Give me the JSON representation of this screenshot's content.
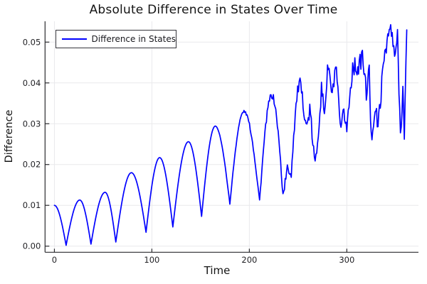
{
  "figure": {
    "title": "Absolute Difference in States Over Time",
    "x_label": "Time",
    "y_label": "Difference"
  },
  "legend": {
    "label": "Difference in States"
  },
  "colors": {
    "series": "#0000ff",
    "grid": "#e9e9ec",
    "axis": "#2a2a2e",
    "text": "#1f1f23",
    "background": "#ffffff"
  },
  "chart_data": {
    "type": "line",
    "title": "Absolute Difference in States Over Time",
    "xlabel": "Time",
    "ylabel": "Difference",
    "xlim": [
      -9.6,
      373.5
    ],
    "ylim": [
      -0.0015,
      0.0551
    ],
    "grid": true,
    "legend_position": "top-left",
    "x_ticks": {
      "values": [
        0,
        100,
        200,
        300
      ],
      "labels": [
        "0",
        "100",
        "200",
        "300"
      ]
    },
    "y_ticks": {
      "values": [
        0.0,
        0.01,
        0.02,
        0.03,
        0.04,
        0.05
      ],
      "labels": [
        "0.00",
        "0.01",
        "0.02",
        "0.03",
        "0.04",
        "0.05"
      ]
    },
    "series": [
      {
        "name": "Difference in States",
        "color": "#0000ff",
        "points_note": "key data points (local extrema) read from the plot; curve oscillates between them",
        "points": [
          [
            0,
            0.01
          ],
          [
            12,
            0.0002
          ],
          [
            26,
            0.0113
          ],
          [
            37.5,
            0.0005
          ],
          [
            52,
            0.0132
          ],
          [
            63,
            0.001
          ],
          [
            79,
            0.018
          ],
          [
            94,
            0.0034
          ],
          [
            108,
            0.0217
          ],
          [
            121.5,
            0.0047
          ],
          [
            137.5,
            0.0256
          ],
          [
            151,
            0.0073
          ],
          [
            165,
            0.0294
          ],
          [
            180,
            0.0103
          ],
          [
            194.5,
            0.033
          ],
          [
            210.5,
            0.0111
          ],
          [
            223,
            0.0369
          ],
          [
            234.5,
            0.0125
          ],
          [
            239,
            0.019
          ],
          [
            243,
            0.0178
          ],
          [
            252,
            0.0398
          ],
          [
            259,
            0.029
          ],
          [
            262,
            0.0335
          ],
          [
            267.5,
            0.0193
          ],
          [
            274,
            0.0382
          ],
          [
            277,
            0.033
          ],
          [
            281,
            0.0447
          ],
          [
            285,
            0.0362
          ],
          [
            288.5,
            0.0442
          ],
          [
            294,
            0.0272
          ],
          [
            297,
            0.0332
          ],
          [
            300,
            0.0288
          ],
          [
            306,
            0.0443
          ],
          [
            312,
            0.0435
          ],
          [
            316,
            0.0468
          ],
          [
            320,
            0.0375
          ],
          [
            323,
            0.043
          ],
          [
            325,
            0.0261
          ],
          [
            329,
            0.0342
          ],
          [
            332,
            0.0292
          ],
          [
            339,
            0.0481
          ],
          [
            345,
            0.0537
          ],
          [
            349,
            0.0462
          ],
          [
            352,
            0.0512
          ],
          [
            355,
            0.0272
          ],
          [
            357.5,
            0.0392
          ],
          [
            359,
            0.0255
          ],
          [
            361.5,
            0.053
          ]
        ],
        "noise": {
          "start_t": 150,
          "ramp_t": 120,
          "max_amplitude": 0.0022
        }
      }
    ]
  }
}
